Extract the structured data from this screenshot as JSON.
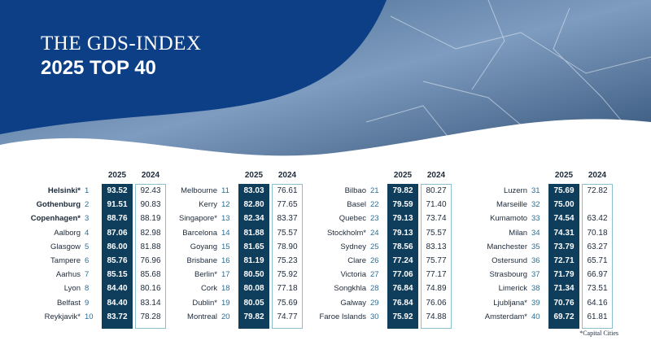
{
  "header": {
    "title": "THE GDS-INDEX",
    "subtitle": "2025 TOP 40"
  },
  "groups": [
    {
      "columns": [
        "2025",
        "2024"
      ],
      "rows": [
        [
          "Helsinki*",
          "1",
          "93.52",
          "92.43"
        ],
        [
          "Gothenburg",
          "2",
          "91.51",
          "90.83"
        ],
        [
          "Copenhagen*",
          "3",
          "88.76",
          "88.19"
        ],
        [
          "Aalborg",
          "4",
          "87.06",
          "82.98"
        ],
        [
          "Glasgow",
          "5",
          "86.00",
          "81.88"
        ],
        [
          "Tampere",
          "6",
          "85.76",
          "76.96"
        ],
        [
          "Aarhus",
          "7",
          "85.15",
          "85.68"
        ],
        [
          "Lyon",
          "8",
          "84.40",
          "80.16"
        ],
        [
          "Belfast",
          "9",
          "84.40",
          "83.14"
        ],
        [
          "Reykjavik*",
          "10",
          "83.72",
          "78.28"
        ]
      ]
    },
    {
      "columns": [
        "2025",
        "2024"
      ],
      "rows": [
        [
          "Melbourne",
          "11",
          "83.03",
          "76.61"
        ],
        [
          "Kerry",
          "12",
          "82.80",
          "77.65"
        ],
        [
          "Singapore*",
          "13",
          "82.34",
          "83.37"
        ],
        [
          "Barcelona",
          "14",
          "81.88",
          "75.57"
        ],
        [
          "Goyang",
          "15",
          "81.65",
          "78.90"
        ],
        [
          "Brisbane",
          "16",
          "81.19",
          "75.23"
        ],
        [
          "Berlin*",
          "17",
          "80.50",
          "75.92"
        ],
        [
          "Cork",
          "18",
          "80.08",
          "77.18"
        ],
        [
          "Dublin*",
          "19",
          "80.05",
          "75.69"
        ],
        [
          "Montreal",
          "20",
          "79.82",
          "74.77"
        ]
      ]
    },
    {
      "columns": [
        "2025",
        "2024"
      ],
      "rows": [
        [
          "Bilbao",
          "21",
          "79.82",
          "80.27"
        ],
        [
          "Basel",
          "22",
          "79.59",
          "71.40"
        ],
        [
          "Quebec",
          "23",
          "79.13",
          "73.74"
        ],
        [
          "Stockholm*",
          "24",
          "79.13",
          "75.57"
        ],
        [
          "Sydney",
          "25",
          "78.56",
          "83.13"
        ],
        [
          "Clare",
          "26",
          "77.24",
          "75.77"
        ],
        [
          "Victoria",
          "27",
          "77.06",
          "77.17"
        ],
        [
          "Songkhla",
          "28",
          "76.84",
          "74.89"
        ],
        [
          "Galway",
          "29",
          "76.84",
          "76.06"
        ],
        [
          "Faroe Islands",
          "30",
          "75.92",
          "74.88"
        ]
      ]
    },
    {
      "columns": [
        "2025",
        "2024"
      ],
      "rows": [
        [
          "Luzern",
          "31",
          "75.69",
          "72.82"
        ],
        [
          "Marseille",
          "32",
          "75.00",
          null
        ],
        [
          "Kumamoto",
          "33",
          "74.54",
          "63.42"
        ],
        [
          "Milan",
          "34",
          "74.31",
          "70.18"
        ],
        [
          "Manchester",
          "35",
          "73.79",
          "63.27"
        ],
        [
          "Ostersund",
          "36",
          "72.71",
          "65.71"
        ],
        [
          "Strasbourg",
          "37",
          "71.79",
          "66.97"
        ],
        [
          "Limerick",
          "38",
          "71.34",
          "73.51"
        ],
        [
          "Ljubljana*",
          "39",
          "70.76",
          "64.16"
        ],
        [
          "Amsterdam*",
          "40",
          "69.72",
          "61.81"
        ]
      ]
    }
  ],
  "footnote": "*Capital Cities"
}
